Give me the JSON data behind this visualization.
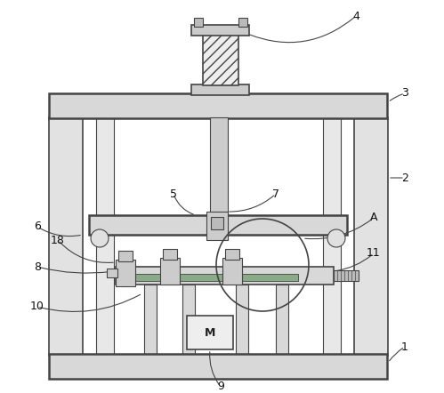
{
  "bg_color": "#ffffff",
  "lc": "#444444",
  "lc_thin": "#666666",
  "fc_plate": "#d8d8d8",
  "fc_col": "#e2e2e2",
  "fc_light": "#eeeeee",
  "fc_dark": "#bbbbbb",
  "fc_mid": "#cccccc"
}
